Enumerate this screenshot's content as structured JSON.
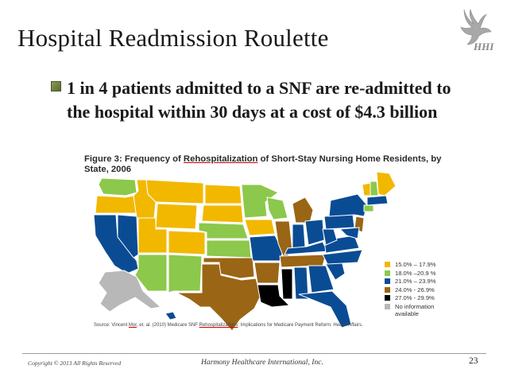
{
  "slide": {
    "title": "Hospital Readmission Roulette",
    "bullet": "1 in 4 patients admitted to a SNF are re-admitted to the hospital within 30 days at a cost of $4.3 billion"
  },
  "logo": {
    "text": "HHI",
    "icon": "dove-logo-icon"
  },
  "figure": {
    "caption_before": "Figure 3: Frequency of ",
    "caption_highlight": "Rehospitalization",
    "caption_after": " of Short-Stay Nursing Home Residents, by State, 2006",
    "source_before": "Source: Vincent ",
    "source_highlight_1": "Mor",
    "source_middle": ", et. al. (2010) Medicare SNF ",
    "source_highlight_2": "Rehospitalizations",
    "source_after": ": Implications for Medicare Payment Reform. Health Affairs."
  },
  "legend": {
    "items": [
      {
        "label": "15.0% – 17.9%",
        "color": "#f2b800"
      },
      {
        "label": "18.0% –20.9 %",
        "color": "#8cc84b"
      },
      {
        "label": "21.0% – 23.9%",
        "color": "#0a4c94"
      },
      {
        "label": "24.0% - 26.9%",
        "color": "#9a6515"
      },
      {
        "label": "27.0% - 29.9%",
        "color": "#000000"
      },
      {
        "label": "No information available",
        "color": "#b8b8b8"
      }
    ]
  },
  "footer": {
    "copyright": "Copyright © 2013 All Rights Reserved",
    "company": "Harmony Healthcare International, Inc.",
    "page_number": "23"
  }
}
